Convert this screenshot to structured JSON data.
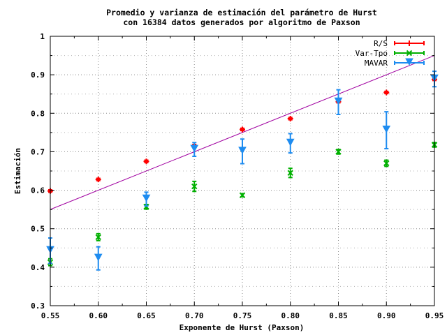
{
  "chart_data": {
    "type": "scatter",
    "title": "Promedio y varianza de estimación del parámetro de Hurst",
    "subtitle": "con 16384 datos generados por algoritmo de Paxson",
    "xlabel": "Exponente de Hurst (Paxson)",
    "ylabel": "Estimación",
    "xlim": [
      0.55,
      0.95
    ],
    "ylim": [
      0.3,
      1.0
    ],
    "x_ticks": [
      "0.55",
      "0.60",
      "0.65",
      "0.70",
      "0.75",
      "0.80",
      "0.85",
      "0.90",
      "0.95"
    ],
    "y_ticks": [
      "0.3",
      "0.4",
      "0.5",
      "0.6",
      "0.7",
      "0.8",
      "0.9",
      "1"
    ],
    "grid": true,
    "legend_position": "top-right",
    "reference_line": {
      "slope": 1,
      "intercept": 0,
      "color": "#a000a0"
    },
    "series": [
      {
        "name": "R/S",
        "color": "#ff0000",
        "marker": "plus",
        "points": [
          {
            "x": 0.55,
            "y": 0.598,
            "err": 0.003
          },
          {
            "x": 0.6,
            "y": 0.628,
            "err": 0.003
          },
          {
            "x": 0.65,
            "y": 0.675,
            "err": 0.003
          },
          {
            "x": 0.7,
            "y": 0.716,
            "err": 0.003
          },
          {
            "x": 0.75,
            "y": 0.758,
            "err": 0.003
          },
          {
            "x": 0.8,
            "y": 0.786,
            "err": 0.003
          },
          {
            "x": 0.85,
            "y": 0.83,
            "err": 0.003
          },
          {
            "x": 0.9,
            "y": 0.854,
            "err": 0.003
          },
          {
            "x": 0.95,
            "y": 0.888,
            "err": 0.003
          }
        ]
      },
      {
        "name": "Var-Tpo",
        "color": "#00b000",
        "marker": "cross",
        "points": [
          {
            "x": 0.55,
            "y": 0.413,
            "err": 0.009
          },
          {
            "x": 0.6,
            "y": 0.478,
            "err": 0.009
          },
          {
            "x": 0.65,
            "y": 0.557,
            "err": 0.006
          },
          {
            "x": 0.7,
            "y": 0.61,
            "err": 0.013
          },
          {
            "x": 0.75,
            "y": 0.587,
            "err": 0.004
          },
          {
            "x": 0.8,
            "y": 0.645,
            "err": 0.012
          },
          {
            "x": 0.85,
            "y": 0.7,
            "err": 0.006
          },
          {
            "x": 0.9,
            "y": 0.67,
            "err": 0.008
          },
          {
            "x": 0.95,
            "y": 0.718,
            "err": 0.006
          }
        ]
      },
      {
        "name": "MAVAR",
        "color": "#1e8cf0",
        "marker": "triangle-down",
        "points": [
          {
            "x": 0.55,
            "y": 0.443,
            "err": 0.033
          },
          {
            "x": 0.6,
            "y": 0.423,
            "err": 0.03
          },
          {
            "x": 0.65,
            "y": 0.577,
            "err": 0.018
          },
          {
            "x": 0.7,
            "y": 0.706,
            "err": 0.018
          },
          {
            "x": 0.75,
            "y": 0.701,
            "err": 0.032
          },
          {
            "x": 0.8,
            "y": 0.722,
            "err": 0.025
          },
          {
            "x": 0.85,
            "y": 0.829,
            "err": 0.032
          },
          {
            "x": 0.9,
            "y": 0.756,
            "err": 0.048
          },
          {
            "x": 0.95,
            "y": 0.889,
            "err": 0.02
          }
        ]
      }
    ]
  }
}
